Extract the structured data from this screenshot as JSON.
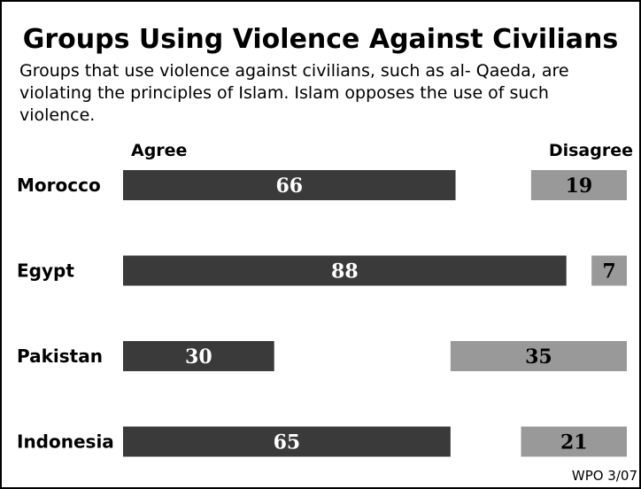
{
  "chart_data": {
    "type": "bar",
    "title": "Groups Using Violence Against Civilians",
    "subtitle": "Groups that use violence against civilians, such as al- Qaeda, are violating the principles of Islam.  Islam opposes the use of such violence.",
    "categories": [
      "Morocco",
      "Egypt",
      "Pakistan",
      "Indonesia"
    ],
    "series": [
      {
        "name": "Agree",
        "values": [
          66,
          88,
          30,
          65
        ],
        "color": "#3a3a3a"
      },
      {
        "name": "Disagree",
        "values": [
          19,
          7,
          35,
          21
        ],
        "color": "#999999"
      }
    ],
    "xlim": [
      0,
      100
    ],
    "grid": false,
    "legend": "top"
  },
  "footer": {
    "source": "WPO 3/07"
  }
}
